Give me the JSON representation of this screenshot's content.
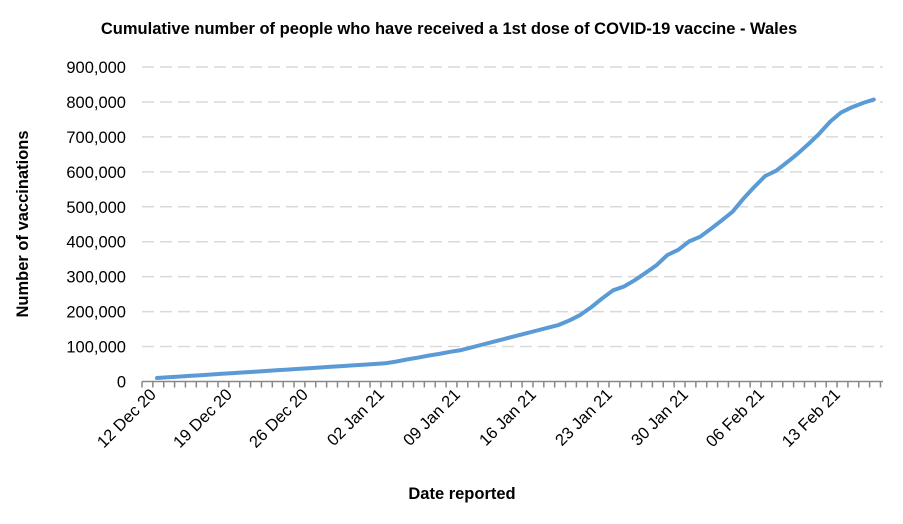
{
  "chart_data": {
    "type": "line",
    "title": "Cumulative number of people who have received a 1st dose of COVID-19 vaccine - Wales",
    "xlabel": "Date reported",
    "ylabel": "Number of vaccinations",
    "ylim": [
      0,
      900000
    ],
    "yticks": [
      "0",
      "100,000",
      "200,000",
      "300,000",
      "400,000",
      "500,000",
      "600,000",
      "700,000",
      "800,000",
      "900,000"
    ],
    "xtick_labels": [
      "12 Dec 20",
      "19 Dec 20",
      "26 Dec 20",
      "02 Jan 21",
      "09 Jan 21",
      "16 Jan 21",
      "23 Jan 21",
      "30 Jan 21",
      "06 Feb 21",
      "13 Feb 21"
    ],
    "grid": "horizontal dashed",
    "legend": "none",
    "line_color": "#5B9BD5",
    "start_date": "2020-12-12",
    "values": [
      10000,
      12000,
      14000,
      16000,
      18000,
      20000,
      22000,
      24000,
      26000,
      28000,
      30000,
      32000,
      34000,
      36000,
      38000,
      40000,
      42000,
      44000,
      46000,
      48000,
      50000,
      52000,
      57000,
      63000,
      68000,
      74000,
      79000,
      85000,
      90000,
      98000,
      106000,
      114000,
      122000,
      130000,
      138000,
      146000,
      154000,
      162000,
      175000,
      191000,
      213000,
      238000,
      261000,
      272000,
      290000,
      311000,
      333000,
      362000,
      377000,
      401000,
      414000,
      437000,
      461000,
      486000,
      523000,
      557000,
      588000,
      603000,
      627000,
      652000,
      680000,
      710000,
      744000,
      770000,
      785000,
      797000,
      807000
    ]
  }
}
